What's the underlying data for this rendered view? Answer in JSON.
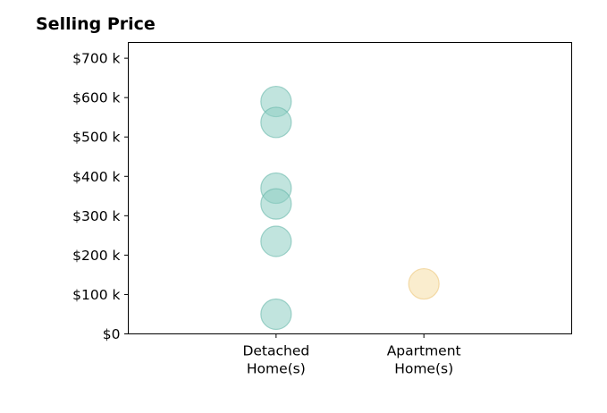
{
  "chart_data": {
    "type": "scatter",
    "title": "Selling Price",
    "xlabel": "",
    "ylabel": "",
    "categories": [
      "Detached\nHome(s)",
      "Apartment\nHome(s)"
    ],
    "ylim": [
      0,
      740000
    ],
    "y_ticks": [
      {
        "value": 0,
        "label": "$0"
      },
      {
        "value": 100000,
        "label": "$100 k"
      },
      {
        "value": 200000,
        "label": "$200 k"
      },
      {
        "value": 300000,
        "label": "$300 k"
      },
      {
        "value": 400000,
        "label": "$400 k"
      },
      {
        "value": 500000,
        "label": "$500 k"
      },
      {
        "value": 600000,
        "label": "$600 k"
      },
      {
        "value": 700000,
        "label": "$700 k"
      }
    ],
    "grid": false,
    "legend": "none",
    "series": [
      {
        "category_index": 0,
        "color": "#8ecdc2",
        "edge_color": "#67b8aa",
        "values": [
          590000,
          537000,
          370000,
          330000,
          235000,
          50000
        ]
      },
      {
        "category_index": 1,
        "color": "#f5dea6",
        "edge_color": "#ecc77a",
        "values": [
          127000
        ]
      }
    ]
  }
}
